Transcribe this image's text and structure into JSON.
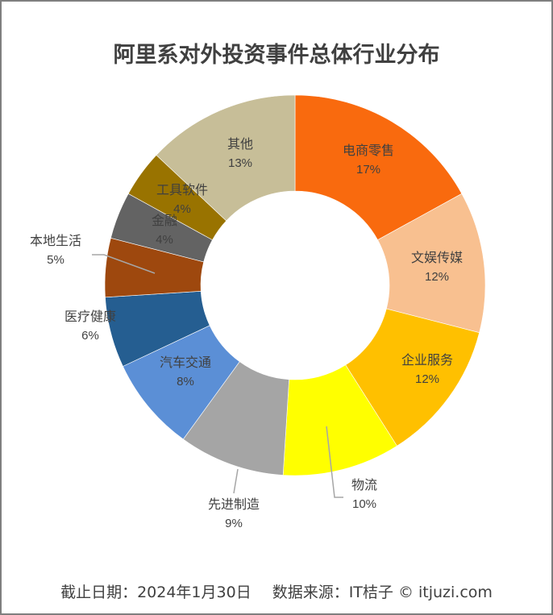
{
  "title": "阿里系对外投资事件总体行业分布",
  "footer": {
    "date": "截止日期：2024年1月30日",
    "source": "数据来源：IT桔子 © itjuzi.com"
  },
  "chart_data": {
    "type": "pie",
    "variant": "donut",
    "title": "阿里系对外投资事件总体行业分布",
    "unit": "%",
    "categories": [
      "电商零售",
      "文娱传媒",
      "企业服务",
      "物流",
      "先进制造",
      "汽车交通",
      "医疗健康",
      "本地生活",
      "金融",
      "工具软件",
      "其他"
    ],
    "values": [
      17,
      12,
      12,
      10,
      9,
      8,
      6,
      5,
      4,
      4,
      13
    ],
    "labels": [
      "17%",
      "12%",
      "12%",
      "10%",
      "9%",
      "8%",
      "6%",
      "5%",
      "4%",
      "4%",
      "13%"
    ],
    "colors": [
      "#F96A0E",
      "#F8C090",
      "#FFC000",
      "#FFFF00",
      "#A5A5A5",
      "#5B8FD6",
      "#255E91",
      "#9E480E",
      "#636363",
      "#997300",
      "#C7BE98"
    ],
    "start_angle_deg": 0,
    "direction": "clockwise",
    "legend": "none",
    "data_labels": "category and percent"
  }
}
